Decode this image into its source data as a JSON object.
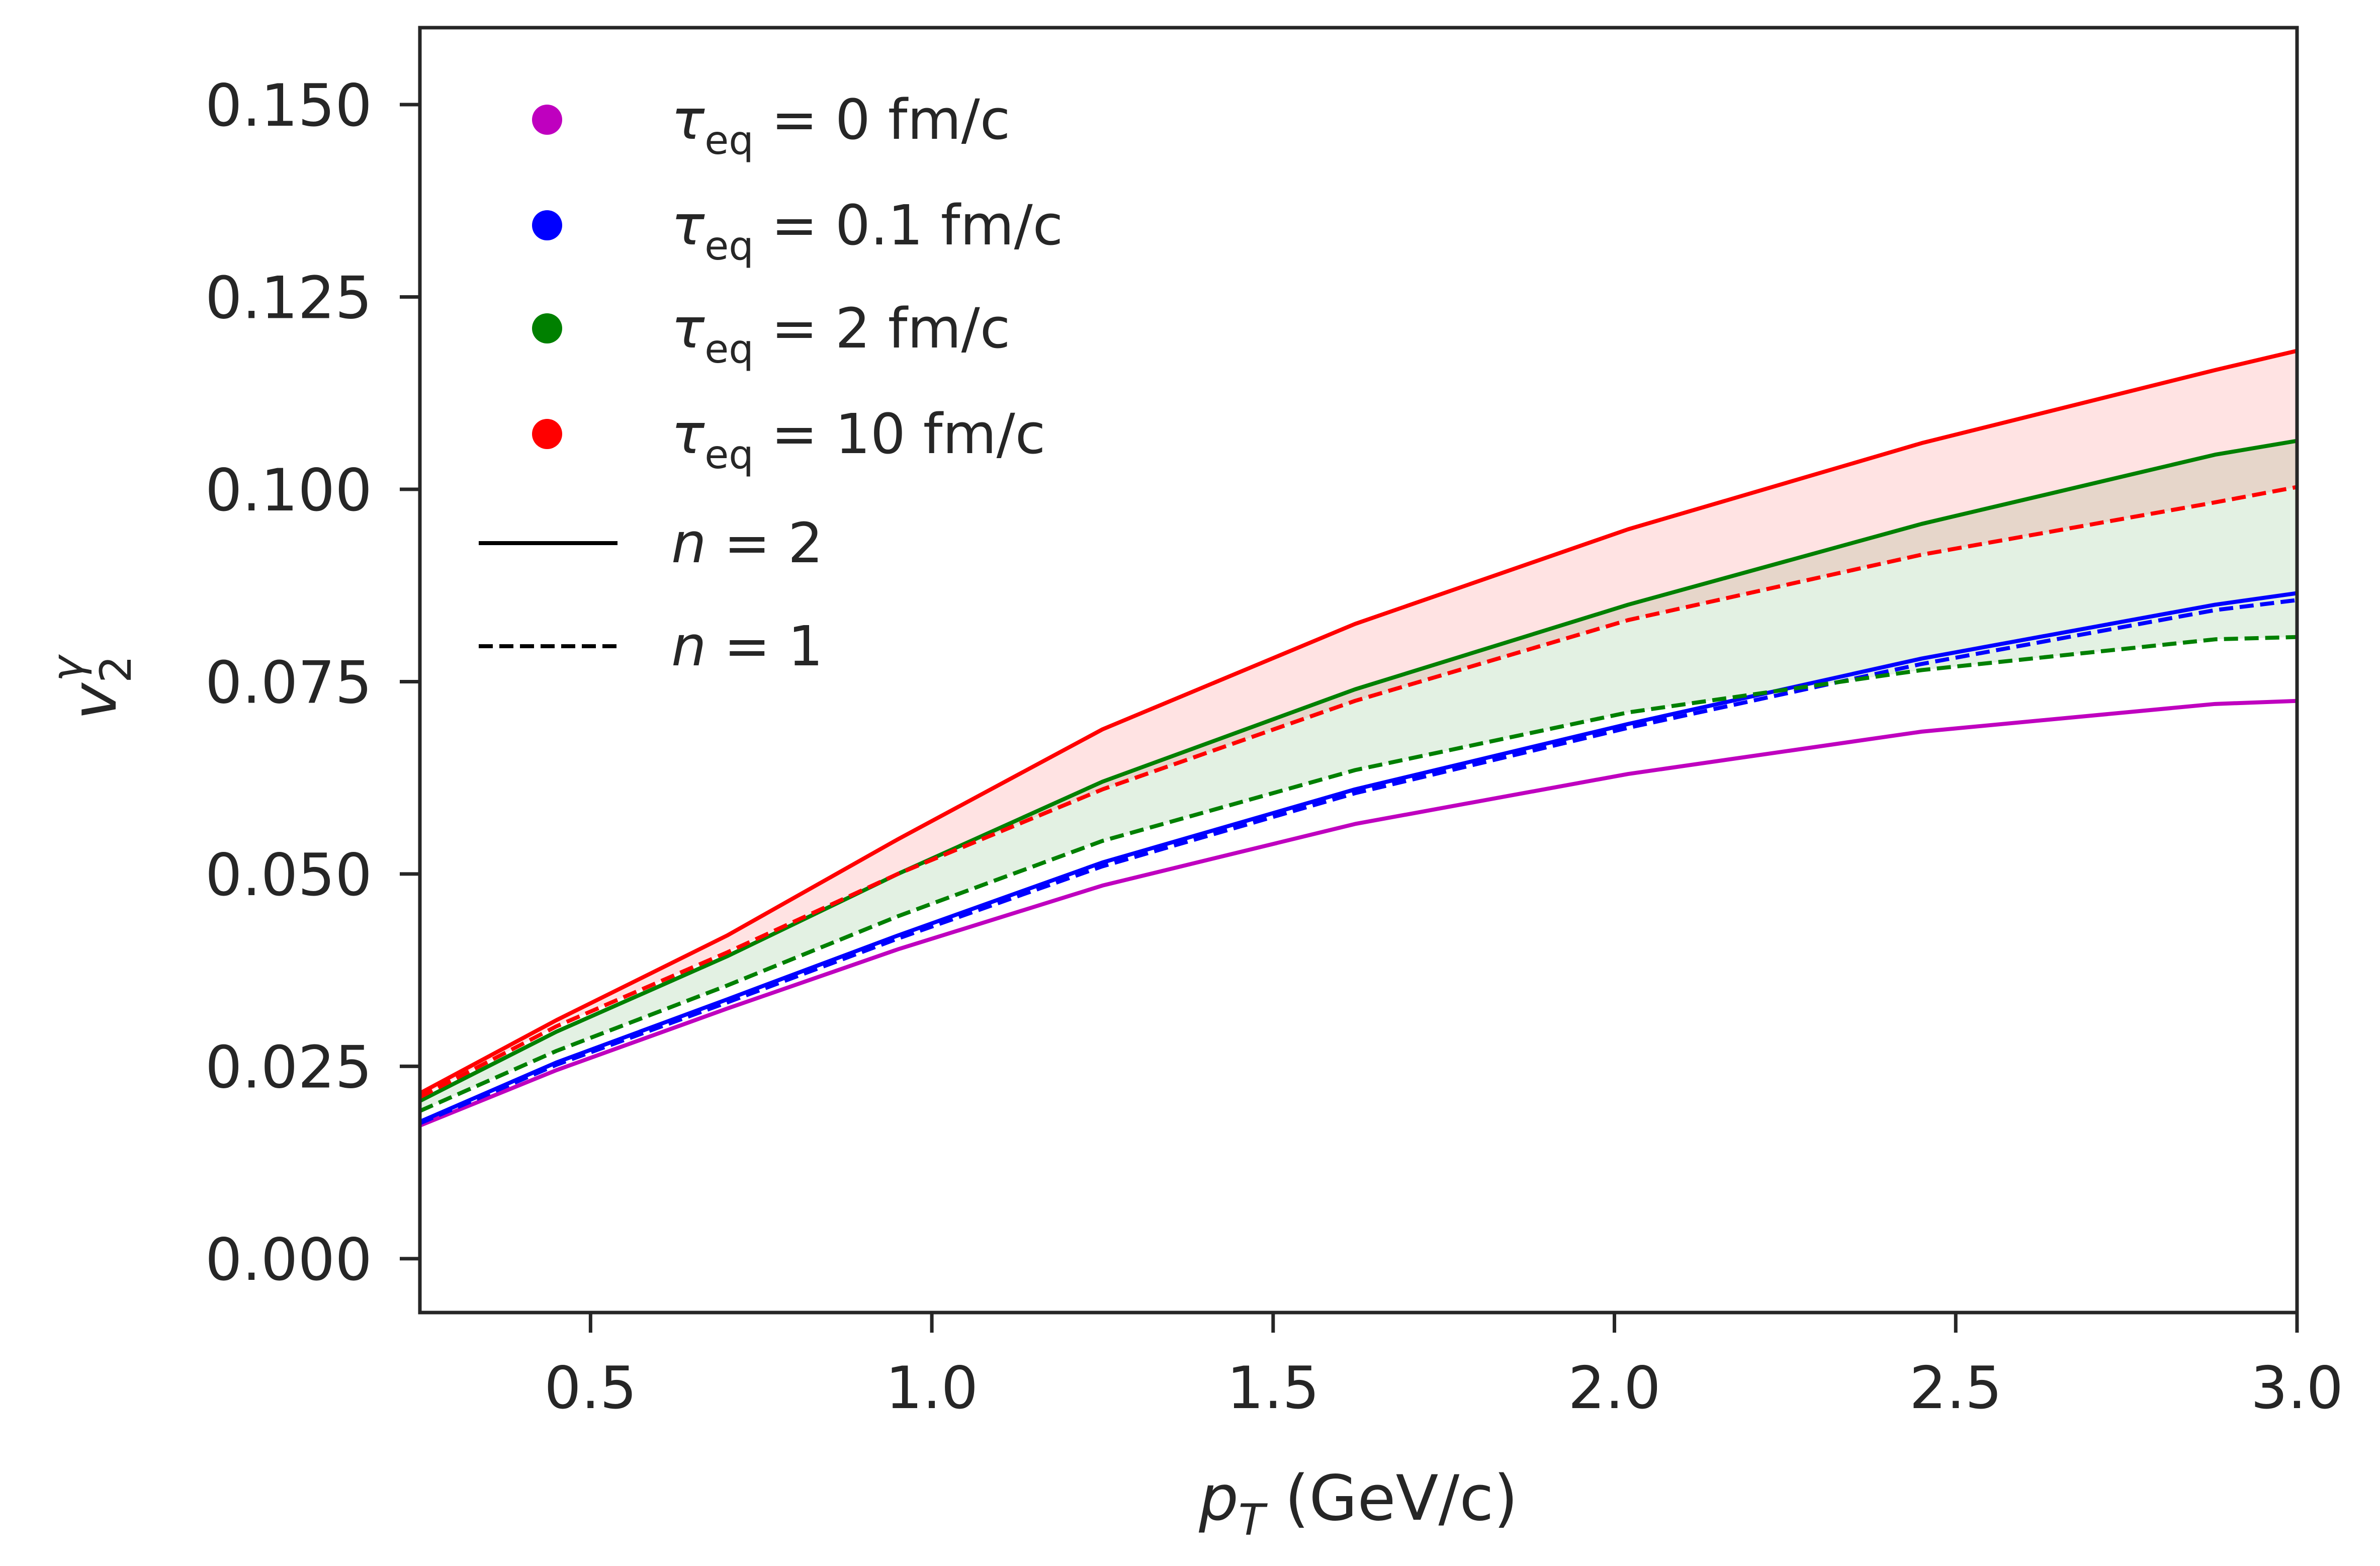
{
  "chart_data": {
    "type": "line",
    "title": "",
    "xlabel": "p_T (GeV/c)",
    "xlabel_parts": {
      "symbol": "p",
      "sub": "T",
      "unit": "(GeV/c)"
    },
    "ylabel": "v_2^γ",
    "ylabel_parts": {
      "symbol": "v",
      "sub": "2",
      "sup": "γ"
    },
    "xlim": [
      0.25,
      3.0
    ],
    "ylim": [
      -0.007,
      0.16
    ],
    "xticks": [
      0.5,
      1.0,
      1.5,
      2.0,
      2.5,
      3.0
    ],
    "xtick_labels": [
      "0.5",
      "1.0",
      "1.5",
      "2.0",
      "2.5",
      "3.0"
    ],
    "yticks": [
      0.0,
      0.025,
      0.05,
      0.075,
      0.1,
      0.125,
      0.15
    ],
    "ytick_labels": [
      "0.000",
      "0.025",
      "0.050",
      "0.075",
      "0.100",
      "0.125",
      "0.150"
    ],
    "grid": false,
    "legend_position": "top-left",
    "x": [
      0.25,
      0.45,
      0.7,
      0.95,
      1.25,
      1.62,
      2.02,
      2.45,
      2.88,
      3.0
    ],
    "series": [
      {
        "name": "τ_eq = 0 fm/c, n = 2",
        "tau": "0",
        "n": 2,
        "color": "#bf00bf",
        "dash": "solid",
        "values": [
          0.0173,
          0.0245,
          0.0325,
          0.0402,
          0.0485,
          0.0565,
          0.063,
          0.0685,
          0.0721,
          0.0725
        ]
      },
      {
        "name": "τ_eq = 0.1 fm/c, n = 2",
        "tau": "0.1",
        "n": 2,
        "color": "#0000ff",
        "dash": "solid",
        "values": [
          0.0178,
          0.0255,
          0.0337,
          0.042,
          0.0515,
          0.061,
          0.0695,
          0.078,
          0.085,
          0.0865
        ]
      },
      {
        "name": "τ_eq = 0.1 fm/c, n = 1",
        "tau": "0.1",
        "n": 1,
        "color": "#0000ff",
        "dash": "dashed",
        "values": [
          0.0176,
          0.0252,
          0.0333,
          0.0416,
          0.051,
          0.0605,
          0.069,
          0.0773,
          0.0843,
          0.0856
        ]
      },
      {
        "name": "τ_eq = 2 fm/c, n = 2",
        "tau": "2",
        "n": 2,
        "color": "#008000",
        "dash": "solid",
        "values": [
          0.0205,
          0.0295,
          0.0393,
          0.05,
          0.062,
          0.074,
          0.085,
          0.0955,
          0.1045,
          0.1063
        ]
      },
      {
        "name": "τ_eq = 2 fm/c, n = 1",
        "tau": "2",
        "n": 1,
        "color": "#008000",
        "dash": "dashed",
        "values": [
          0.0192,
          0.027,
          0.0355,
          0.0445,
          0.0543,
          0.0635,
          0.071,
          0.0765,
          0.0805,
          0.0808
        ]
      },
      {
        "name": "τ_eq = 10 fm/c, n = 2",
        "tau": "10",
        "n": 2,
        "color": "#ff0000",
        "dash": "solid",
        "values": [
          0.0215,
          0.031,
          0.042,
          0.0545,
          0.0688,
          0.0825,
          0.0948,
          0.106,
          0.1155,
          0.118
        ]
      },
      {
        "name": "τ_eq = 10 fm/c, n = 1",
        "tau": "10",
        "n": 1,
        "color": "#ff0000",
        "dash": "dashed",
        "values": [
          0.021,
          0.0302,
          0.0398,
          0.05,
          0.061,
          0.0725,
          0.083,
          0.0915,
          0.0983,
          0.1003
        ]
      }
    ],
    "bands": [
      {
        "name": "τ_eq = 2 fm/c band (n = 1 to n = 2)",
        "lower": "τ_eq = 2 fm/c, n = 1",
        "upper": "τ_eq = 2 fm/c, n = 2",
        "fill": "#008000",
        "opacity": 0.11
      },
      {
        "name": "τ_eq = 10 fm/c band (n = 1 to n = 2)",
        "lower": "τ_eq = 10 fm/c, n = 1",
        "upper": "τ_eq = 10 fm/c, n = 2",
        "fill": "#ff0000",
        "opacity": 0.11
      }
    ],
    "legend": [
      {
        "kind": "marker",
        "color": "#bf00bf",
        "symbol": "τ",
        "sub": "eq",
        "text": " = 0 fm/c"
      },
      {
        "kind": "marker",
        "color": "#0000ff",
        "symbol": "τ",
        "sub": "eq",
        "text": " = 0.1 fm/c"
      },
      {
        "kind": "marker",
        "color": "#008000",
        "symbol": "τ",
        "sub": "eq",
        "text": " = 2 fm/c"
      },
      {
        "kind": "marker",
        "color": "#ff0000",
        "symbol": "τ",
        "sub": "eq",
        "text": " = 10 fm/c"
      },
      {
        "kind": "line",
        "color": "#000000",
        "dash": "solid",
        "symbol": "n",
        "text": " = 2"
      },
      {
        "kind": "line",
        "color": "#000000",
        "dash": "dashed",
        "symbol": "n",
        "text": " = 1"
      }
    ]
  }
}
